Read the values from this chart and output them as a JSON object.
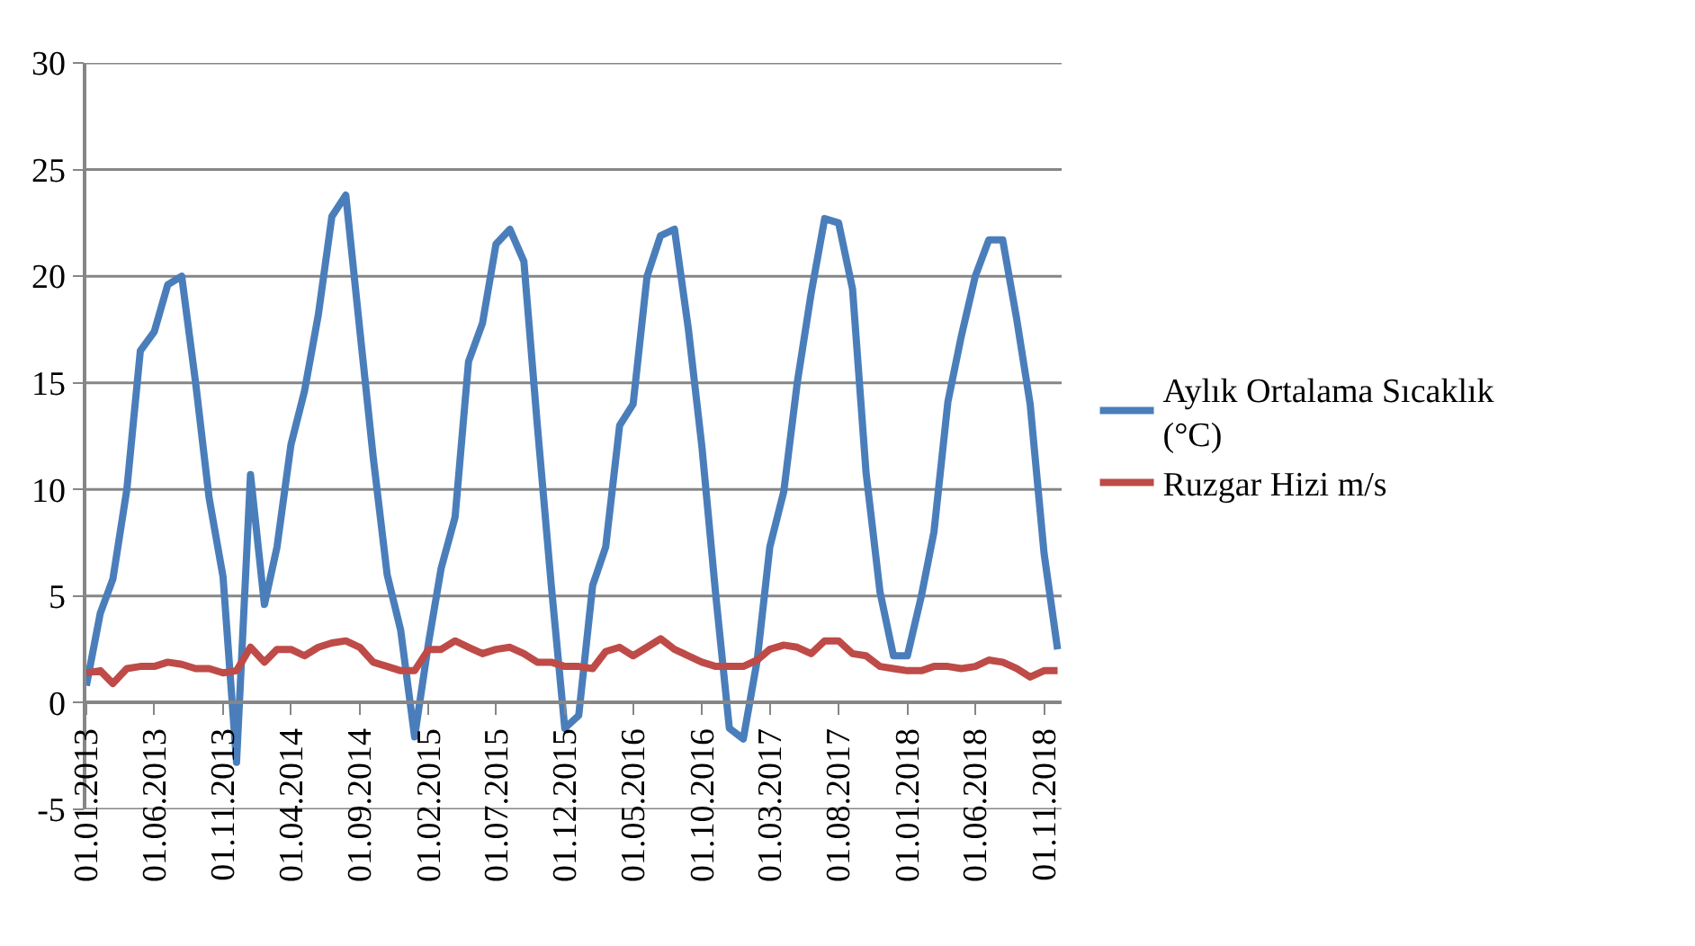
{
  "chart_data": {
    "type": "line",
    "x": [
      "2013-01",
      "2013-02",
      "2013-03",
      "2013-04",
      "2013-05",
      "2013-06",
      "2013-07",
      "2013-08",
      "2013-09",
      "2013-10",
      "2013-11",
      "2013-12",
      "2014-01",
      "2014-02",
      "2014-03",
      "2014-04",
      "2014-05",
      "2014-06",
      "2014-07",
      "2014-08",
      "2014-09",
      "2014-10",
      "2014-11",
      "2014-12",
      "2015-01",
      "2015-02",
      "2015-03",
      "2015-04",
      "2015-05",
      "2015-06",
      "2015-07",
      "2015-08",
      "2015-09",
      "2015-10",
      "2015-11",
      "2015-12",
      "2016-01",
      "2016-02",
      "2016-03",
      "2016-04",
      "2016-05",
      "2016-06",
      "2016-07",
      "2016-08",
      "2016-09",
      "2016-10",
      "2016-11",
      "2016-12",
      "2017-01",
      "2017-02",
      "2017-03",
      "2017-04",
      "2017-05",
      "2017-06",
      "2017-07",
      "2017-08",
      "2017-09",
      "2017-10",
      "2017-11",
      "2017-12",
      "2018-01",
      "2018-02",
      "2018-03",
      "2018-04",
      "2018-05",
      "2018-06",
      "2018-07",
      "2018-08",
      "2018-09",
      "2018-10",
      "2018-11",
      "2018-12"
    ],
    "series": [
      {
        "name": "Aylık Ortalama Sıcaklık (°C)",
        "color": "#4a7ebb",
        "values": [
          0.8,
          4.2,
          5.8,
          10,
          16.5,
          17.4,
          19.6,
          20.0,
          15,
          9.6,
          5.9,
          -2.8,
          10.7,
          4.6,
          7.3,
          12.1,
          14.6,
          18.2,
          22.8,
          23.8,
          17.5,
          11.5,
          6,
          3.4,
          -1.6,
          2.8,
          6.3,
          8.7,
          16,
          17.8,
          21.5,
          22.2,
          20.7,
          13,
          5.5,
          -1.2,
          -0.6,
          5.5,
          7.3,
          13,
          14,
          20,
          21.9,
          22.2,
          17.5,
          12,
          5,
          -1.2,
          -1.7,
          2,
          7.3,
          9.9,
          15,
          19.2,
          22.7,
          22.5,
          19.4,
          10.8,
          5.2,
          2.2,
          2.2,
          5,
          8,
          14.1,
          17.2,
          20,
          21.7,
          21.7,
          18,
          14,
          7,
          2.5
        ]
      },
      {
        "name": "Ruzgar Hizi m/s",
        "color": "#be4b48",
        "values": [
          1.4,
          1.5,
          0.9,
          1.6,
          1.7,
          1.7,
          1.9,
          1.8,
          1.6,
          1.6,
          1.4,
          1.5,
          2.6,
          1.9,
          2.5,
          2.5,
          2.2,
          2.6,
          2.8,
          2.9,
          2.6,
          1.9,
          1.7,
          1.5,
          1.5,
          2.5,
          2.5,
          2.9,
          2.6,
          2.3,
          2.5,
          2.6,
          2.3,
          1.9,
          1.9,
          1.7,
          1.7,
          1.6,
          2.4,
          2.6,
          2.2,
          2.6,
          3.0,
          2.5,
          2.2,
          1.9,
          1.7,
          1.7,
          1.7,
          2.0,
          2.5,
          2.7,
          2.6,
          2.3,
          2.9,
          2.9,
          2.3,
          2.2,
          1.7,
          1.6,
          1.5,
          1.5,
          1.7,
          1.7,
          1.6,
          1.7,
          2.0,
          1.9,
          1.6,
          1.2,
          1.5,
          1.5
        ]
      }
    ],
    "xlim": [
      "2013-01-01",
      "2018-12-10"
    ],
    "xticks": [
      {
        "value": "2013-01-01",
        "label": "01.01.2013"
      },
      {
        "value": "2013-06-01",
        "label": "01.06.2013"
      },
      {
        "value": "2013-11-01",
        "label": "01.11.2013"
      },
      {
        "value": "2014-04-01",
        "label": "01.04.2014"
      },
      {
        "value": "2014-09-01",
        "label": "01.09.2014"
      },
      {
        "value": "2015-02-01",
        "label": "01.02.2015"
      },
      {
        "value": "2015-07-01",
        "label": "01.07.2015"
      },
      {
        "value": "2015-12-01",
        "label": "01.12.2015"
      },
      {
        "value": "2016-05-01",
        "label": "01.05.2016"
      },
      {
        "value": "2016-10-01",
        "label": "01.10.2016"
      },
      {
        "value": "2017-03-01",
        "label": "01.03.2017"
      },
      {
        "value": "2017-08-01",
        "label": "01.08.2017"
      },
      {
        "value": "2018-01-01",
        "label": "01.01.2018"
      },
      {
        "value": "2018-06-01",
        "label": "01.06.2018"
      },
      {
        "value": "2018-11-01",
        "label": "01.11.2018"
      }
    ],
    "ylim": [
      -5,
      30
    ],
    "yticks": [
      -5,
      0,
      5,
      10,
      15,
      20,
      25,
      30
    ],
    "grid": "y",
    "legend": "right",
    "line_style": "solid",
    "marker": "none"
  }
}
